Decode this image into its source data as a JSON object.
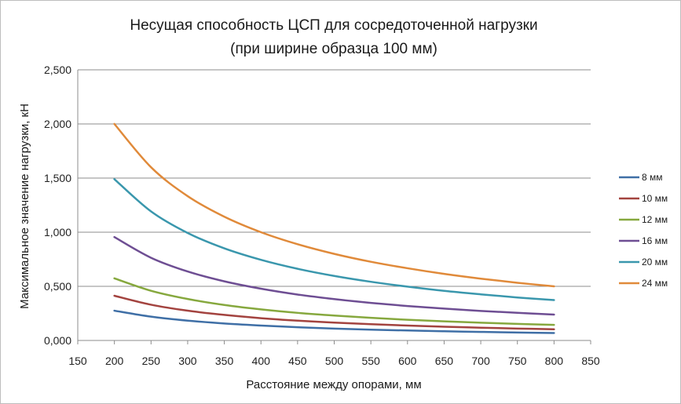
{
  "chart_data": {
    "type": "line",
    "title": "Несущая способность ЦСП для сосредоточенной нагрузки",
    "subtitle": "(при ширине образца 100 мм)",
    "xlabel": "Расстояние между опорами, мм",
    "ylabel": "Максимальное значение нагрузки, кН",
    "xlim": [
      150,
      850
    ],
    "ylim": [
      0,
      2.5
    ],
    "x_ticks": [
      150,
      200,
      250,
      300,
      350,
      400,
      450,
      500,
      550,
      600,
      650,
      700,
      750,
      800,
      850
    ],
    "x_tick_labels": [
      "150",
      "200",
      "250",
      "300",
      "350",
      "400",
      "450",
      "500",
      "550",
      "600",
      "650",
      "700",
      "750",
      "800",
      "850"
    ],
    "y_ticks": [
      0,
      0.5,
      1.0,
      1.5,
      2.0,
      2.5
    ],
    "y_tick_labels": [
      "0,000",
      "0,500",
      "1,000",
      "1,500",
      "2,000",
      "2,500"
    ],
    "grid": "horizontal",
    "legend_position": "right",
    "x": [
      200,
      250,
      300,
      350,
      400,
      450,
      500,
      550,
      600,
      650,
      700,
      750,
      800
    ],
    "series": [
      {
        "name": "8 мм",
        "color": "#3f6fa6",
        "values": [
          0.275,
          0.22,
          0.183,
          0.157,
          0.138,
          0.122,
          0.11,
          0.1,
          0.092,
          0.085,
          0.079,
          0.073,
          0.069
        ]
      },
      {
        "name": "10 мм",
        "color": "#a3433f",
        "values": [
          0.413,
          0.33,
          0.275,
          0.236,
          0.206,
          0.183,
          0.165,
          0.15,
          0.138,
          0.127,
          0.118,
          0.11,
          0.103
        ]
      },
      {
        "name": "12 мм",
        "color": "#86a83e",
        "values": [
          0.574,
          0.459,
          0.383,
          0.328,
          0.287,
          0.255,
          0.23,
          0.209,
          0.191,
          0.177,
          0.164,
          0.153,
          0.144
        ]
      },
      {
        "name": "16 мм",
        "color": "#6e4e93",
        "values": [
          0.955,
          0.764,
          0.637,
          0.546,
          0.478,
          0.424,
          0.382,
          0.347,
          0.318,
          0.294,
          0.273,
          0.255,
          0.239
        ]
      },
      {
        "name": "20 мм",
        "color": "#3a97ad",
        "values": [
          1.49,
          1.192,
          0.993,
          0.851,
          0.745,
          0.662,
          0.596,
          0.542,
          0.497,
          0.458,
          0.426,
          0.397,
          0.373
        ]
      },
      {
        "name": "24 мм",
        "color": "#e08a3a",
        "values": [
          2.0,
          1.6,
          1.333,
          1.143,
          1.0,
          0.889,
          0.8,
          0.727,
          0.667,
          0.615,
          0.571,
          0.533,
          0.5
        ]
      }
    ]
  }
}
